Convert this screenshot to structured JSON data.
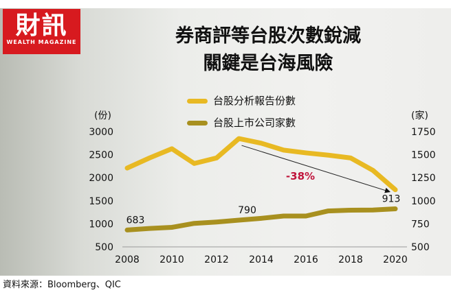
{
  "logo": {
    "text": "財訊",
    "subtitle": "WEALTH MAGAZINE"
  },
  "title_lines": [
    "券商評等台股次數銳減",
    "關鍵是台海風險"
  ],
  "source": "資料來源：Bloomberg、QIC",
  "chart_data": {
    "type": "line",
    "x": [
      2008,
      2009,
      2010,
      2011,
      2012,
      2013,
      2014,
      2015,
      2016,
      2017,
      2018,
      2019,
      2020
    ],
    "x_ticks": [
      "2008",
      "2010",
      "2012",
      "2014",
      "2016",
      "2018",
      "2020"
    ],
    "left_axis": {
      "unit": "(份)",
      "ylim": [
        500,
        3000
      ],
      "ticks": [
        "3000",
        "2500",
        "2000",
        "1500",
        "1000",
        "500"
      ]
    },
    "right_axis": {
      "unit": "(家)",
      "ylim": [
        500,
        1750
      ],
      "ticks": [
        "1750",
        "1500",
        "1250",
        "1000",
        "750",
        "500"
      ]
    },
    "series": [
      {
        "name": "台股分析報告份數",
        "axis": "left",
        "color": "#e8b923",
        "values": [
          2210,
          2430,
          2630,
          2310,
          2430,
          2850,
          2750,
          2600,
          2540,
          2490,
          2430,
          2160,
          1740
        ]
      },
      {
        "name": "台股上市公司家數",
        "axis": "right",
        "color": "#a8901f",
        "values": [
          683,
          700,
          712,
          755,
          770,
          790,
          810,
          835,
          835,
          890,
          898,
          900,
          913
        ]
      }
    ],
    "data_labels": [
      {
        "series": 1,
        "x": 2008,
        "text": "683"
      },
      {
        "series": 1,
        "x": 2013,
        "text": "790"
      },
      {
        "series": 1,
        "x": 2020,
        "text": "913"
      }
    ],
    "annotation": {
      "text": "-38%",
      "color": "#c0143c",
      "from_x": 2013,
      "to_x": 2020
    }
  }
}
